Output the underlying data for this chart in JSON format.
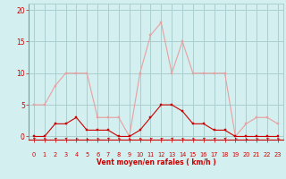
{
  "hours": [
    0,
    1,
    2,
    3,
    4,
    5,
    6,
    7,
    8,
    9,
    10,
    11,
    12,
    13,
    14,
    15,
    16,
    17,
    18,
    19,
    20,
    21,
    22,
    23
  ],
  "wind_avg": [
    0,
    0,
    2,
    2,
    3,
    1,
    1,
    1,
    0,
    0,
    1,
    3,
    5,
    5,
    4,
    2,
    2,
    1,
    1,
    0,
    0,
    0,
    0,
    0
  ],
  "wind_gust": [
    5,
    5,
    8,
    10,
    10,
    10,
    3,
    3,
    3,
    0,
    10,
    16,
    18,
    10,
    15,
    10,
    10,
    10,
    10,
    0,
    2,
    3,
    3,
    2
  ],
  "wind_dir_deg": [
    225,
    210,
    225,
    240,
    210,
    195,
    210,
    240,
    210,
    195,
    210,
    225,
    225,
    240,
    210,
    210,
    225,
    225,
    240,
    210,
    195,
    210,
    225,
    210
  ],
  "bg_color": "#d4efef",
  "grid_color": "#aacfcf",
  "line_avg_color": "#cc0000",
  "line_gust_color": "#e8a0a0",
  "xlabel": "Vent moyen/en rafales ( km/h )",
  "xlabel_color": "#cc0000",
  "yticks": [
    0,
    5,
    10,
    15,
    20
  ],
  "ylim": [
    -0.5,
    21
  ],
  "xlim": [
    -0.5,
    23.5
  ]
}
